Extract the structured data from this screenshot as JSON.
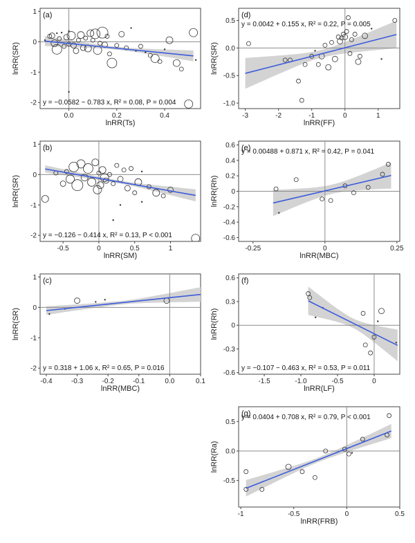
{
  "figure": {
    "description": ""
  },
  "style": {
    "band_color": "#d3d3d3",
    "line_color": "#3b5bdb",
    "point_color": "#333333",
    "ref_line_color": "#8c8c8c"
  },
  "chart_data": [
    {
      "id": "a",
      "panel_label": "(a)",
      "type": "scatter",
      "xlabel": "lnRR(Ts)",
      "ylabel": "lnRR(SR)",
      "xlim": [
        -0.12,
        0.55
      ],
      "ylim": [
        -2.2,
        1.1
      ],
      "xticks": [
        0.0,
        0.2,
        0.4
      ],
      "xtick_labels": [
        "0.0",
        "0.2",
        "0.4"
      ],
      "yticks": [
        -2,
        -1,
        0,
        1
      ],
      "ytick_labels": [
        "-2",
        "-1",
        "0",
        "1"
      ],
      "equation": {
        "prefix": "y = −0.0582 − 0.783 x, ",
        "r2": "R² = 0.08",
        "sep": ", ",
        "p": "P = 0.004"
      },
      "intercept": -0.0582,
      "slope": -0.783,
      "fit_range": [
        -0.1,
        0.52
      ],
      "band": [
        0.16,
        0.05,
        0.18
      ],
      "points": [
        [
          -0.1,
          0.05,
          2
        ],
        [
          -0.08,
          0.18,
          3
        ],
        [
          -0.07,
          0.2,
          4
        ],
        [
          -0.06,
          -0.05,
          5
        ],
        [
          -0.05,
          0.28,
          2
        ],
        [
          -0.05,
          -0.25,
          7
        ],
        [
          -0.04,
          0.1,
          3
        ],
        [
          -0.03,
          0.3,
          2
        ],
        [
          -0.02,
          -0.15,
          3
        ],
        [
          -0.01,
          0.15,
          4
        ],
        [
          0.0,
          0.35,
          2
        ],
        [
          0.0,
          -0.08,
          3
        ],
        [
          0.0,
          -1.65,
          2
        ],
        [
          0.01,
          0.2,
          6
        ],
        [
          0.02,
          -0.12,
          4
        ],
        [
          0.03,
          -0.3,
          4
        ],
        [
          0.04,
          0.05,
          3
        ],
        [
          0.05,
          0.22,
          5
        ],
        [
          0.06,
          -0.2,
          4
        ],
        [
          0.07,
          0.12,
          3
        ],
        [
          0.08,
          -0.22,
          5
        ],
        [
          0.09,
          0.28,
          5
        ],
        [
          0.1,
          0.05,
          3
        ],
        [
          0.11,
          0.26,
          7
        ],
        [
          0.12,
          -0.28,
          6
        ],
        [
          0.13,
          -0.05,
          3
        ],
        [
          0.14,
          0.3,
          8
        ],
        [
          0.15,
          -0.1,
          4
        ],
        [
          0.16,
          0.18,
          3
        ],
        [
          0.17,
          -0.4,
          3
        ],
        [
          0.18,
          -0.7,
          7
        ],
        [
          0.2,
          -0.12,
          3
        ],
        [
          0.22,
          0.25,
          4
        ],
        [
          0.24,
          -0.2,
          3
        ],
        [
          0.26,
          0.45,
          2
        ],
        [
          0.28,
          -0.3,
          2
        ],
        [
          0.3,
          -0.15,
          3
        ],
        [
          0.32,
          -0.35,
          2
        ],
        [
          0.34,
          -0.45,
          3
        ],
        [
          0.36,
          -0.55,
          6
        ],
        [
          0.38,
          -0.65,
          3
        ],
        [
          0.4,
          -0.25,
          2
        ],
        [
          0.42,
          0.05,
          5
        ],
        [
          0.45,
          -0.7,
          5
        ],
        [
          0.47,
          -0.9,
          3
        ],
        [
          0.5,
          -2.05,
          6
        ],
        [
          0.52,
          0.3,
          6
        ],
        [
          0.53,
          -0.6,
          2
        ]
      ]
    },
    {
      "id": "b",
      "panel_label": "(b)",
      "type": "scatter",
      "xlabel": "lnRR(SM)",
      "ylabel": "lnRR(SR)",
      "xlim": [
        -0.82,
        1.42
      ],
      "ylim": [
        -2.2,
        1.1
      ],
      "xticks": [
        -0.5,
        0.0,
        0.5,
        1.0
      ],
      "xtick_labels": [
        "-0.5",
        "0",
        "0.5",
        "1"
      ],
      "yticks": [
        -2,
        -1,
        0,
        1
      ],
      "ytick_labels": [
        "-2",
        "-1",
        "0",
        "1"
      ],
      "equation": {
        "prefix": "y = −0.126 − 0.414 x, ",
        "r2": "R² = 0.13",
        "sep": ", ",
        "p": "P < 0.001"
      },
      "intercept": -0.126,
      "slope": -0.414,
      "fit_range": [
        -0.75,
        1.35
      ],
      "band": [
        0.12,
        0.05,
        0.2
      ],
      "points": [
        [
          -0.75,
          -0.8,
          5
        ],
        [
          -0.6,
          0.05,
          3
        ],
        [
          -0.5,
          -0.3,
          4
        ],
        [
          -0.45,
          0.1,
          3
        ],
        [
          -0.4,
          -0.15,
          6
        ],
        [
          -0.35,
          0.25,
          7
        ],
        [
          -0.3,
          -0.35,
          8
        ],
        [
          -0.25,
          0.35,
          6
        ],
        [
          -0.2,
          -0.1,
          5
        ],
        [
          -0.15,
          0.2,
          7
        ],
        [
          -0.1,
          -0.25,
          6
        ],
        [
          -0.05,
          0.4,
          5
        ],
        [
          -0.02,
          -0.5,
          6
        ],
        [
          0.0,
          0.05,
          3
        ],
        [
          0.02,
          -0.35,
          5
        ],
        [
          0.05,
          0.15,
          5
        ],
        [
          0.08,
          -0.1,
          6
        ],
        [
          0.1,
          -0.2,
          4
        ],
        [
          0.15,
          0.0,
          3
        ],
        [
          0.2,
          -0.3,
          3
        ],
        [
          0.25,
          0.3,
          3
        ],
        [
          0.3,
          -0.15,
          4
        ],
        [
          0.35,
          0.15,
          3
        ],
        [
          0.4,
          -0.45,
          4
        ],
        [
          0.45,
          0.2,
          3
        ],
        [
          0.5,
          -0.6,
          3
        ],
        [
          0.55,
          -0.25,
          5
        ],
        [
          0.6,
          0.1,
          2
        ],
        [
          0.7,
          -0.4,
          3
        ],
        [
          0.8,
          -0.6,
          5
        ],
        [
          0.9,
          -0.7,
          3
        ],
        [
          1.0,
          -0.5,
          4
        ],
        [
          0.2,
          -1.5,
          2
        ],
        [
          0.3,
          -1.0,
          2
        ],
        [
          0.6,
          -0.9,
          2
        ],
        [
          1.35,
          -2.1,
          6
        ]
      ]
    },
    {
      "id": "c",
      "panel_label": "(c)",
      "type": "scatter",
      "xlabel": "lnRR(MBC)",
      "ylabel": "lnRR(SR)",
      "xlim": [
        -0.42,
        0.1
      ],
      "ylim": [
        -2.2,
        1.1
      ],
      "xticks": [
        -0.4,
        -0.3,
        -0.2,
        -0.1,
        0.0,
        0.1
      ],
      "xtick_labels": [
        "-0.4",
        "-0.3",
        "-0.2",
        "-0.1",
        "0.0",
        "0.1"
      ],
      "yticks": [
        -2,
        -1,
        0,
        1
      ],
      "ytick_labels": [
        "-2",
        "-1",
        "0",
        "1"
      ],
      "equation": {
        "prefix": "y = 0.318 + 1.06 x, ",
        "r2": "R² = 0.65",
        "sep": ", ",
        "p": "P = 0.016"
      },
      "intercept": 0.318,
      "slope": 1.06,
      "fit_range": [
        -0.4,
        0.1
      ],
      "band": [
        0.14,
        0.06,
        0.24
      ],
      "points": [
        [
          -0.39,
          -0.22,
          2
        ],
        [
          -0.34,
          -0.05,
          2
        ],
        [
          -0.3,
          0.22,
          4
        ],
        [
          -0.24,
          0.18,
          2
        ],
        [
          -0.21,
          0.25,
          2
        ],
        [
          -0.01,
          0.22,
          4
        ]
      ]
    },
    {
      "id": "d",
      "panel_label": "(d)",
      "type": "scatter",
      "xlabel": "lnRR(FF)",
      "ylabel": "lnRR(SR)",
      "xlim": [
        -3.2,
        1.65
      ],
      "ylim": [
        -1.1,
        0.72
      ],
      "xticks": [
        -3,
        -2,
        -1,
        0,
        1
      ],
      "xtick_labels": [
        "-3",
        "-2",
        "-1",
        "0",
        "1"
      ],
      "yticks": [
        -1.0,
        -0.5,
        0.0,
        0.5
      ],
      "ytick_labels": [
        "-1.0",
        "-0.5",
        "0.0",
        "0.5"
      ],
      "equation": {
        "prefix": "y = 0.0042 + 0.155 x, ",
        "r2": "R² = 0.22",
        "sep": ", ",
        "p": "P = 0.005"
      },
      "intercept": 0.0042,
      "slope": 0.155,
      "fit_range": [
        -3.0,
        1.55
      ],
      "band": [
        0.28,
        0.07,
        0.25
      ],
      "points": [
        [
          -2.9,
          0.08,
          3
        ],
        [
          -1.8,
          -0.22,
          3
        ],
        [
          -1.65,
          -0.22,
          3
        ],
        [
          -1.4,
          -0.6,
          3
        ],
        [
          -1.3,
          -0.95,
          3
        ],
        [
          -1.2,
          -0.3,
          3
        ],
        [
          -1.0,
          -0.15,
          3
        ],
        [
          -0.9,
          -0.05,
          2
        ],
        [
          -0.8,
          -0.3,
          3
        ],
        [
          -0.7,
          -0.15,
          4
        ],
        [
          -0.6,
          0.05,
          3
        ],
        [
          -0.5,
          -0.35,
          4
        ],
        [
          -0.4,
          0.1,
          3
        ],
        [
          -0.3,
          -0.2,
          4
        ],
        [
          -0.2,
          0.2,
          3
        ],
        [
          -0.15,
          0.12,
          4
        ],
        [
          -0.1,
          0.18,
          3
        ],
        [
          -0.05,
          0.25,
          3
        ],
        [
          0.0,
          0.2,
          4
        ],
        [
          0.05,
          0.3,
          3
        ],
        [
          0.1,
          0.55,
          3
        ],
        [
          0.15,
          -0.1,
          3
        ],
        [
          0.2,
          0.15,
          3
        ],
        [
          0.3,
          0.25,
          3
        ],
        [
          0.4,
          -0.25,
          4
        ],
        [
          0.45,
          -0.15,
          3
        ],
        [
          0.6,
          0.22,
          4
        ],
        [
          0.8,
          0.35,
          2
        ],
        [
          1.1,
          -0.2,
          2
        ],
        [
          1.5,
          0.5,
          3
        ]
      ]
    },
    {
      "id": "e",
      "panel_label": "(e)",
      "type": "scatter",
      "xlabel": "lnRR(MBC)",
      "ylabel": "lnRR(Rh)",
      "xlim": [
        -0.3,
        0.26
      ],
      "ylim": [
        -0.65,
        0.65
      ],
      "xticks": [
        -0.25,
        0.0,
        0.25
      ],
      "xtick_labels": [
        "-0.25",
        "0",
        "0.25"
      ],
      "yticks": [
        -0.6,
        -0.4,
        -0.2,
        0.0,
        0.2,
        0.4,
        0.6
      ],
      "ytick_labels": [
        "-0.6",
        "-0.4",
        "-0.2",
        "0",
        "0.2",
        "0.4",
        "0.6"
      ],
      "equation": {
        "prefix": "y = 0.00488 + 0.871 x, ",
        "r2": "R² = 0.42",
        "sep": ", ",
        "p": "P = 0.041"
      },
      "intercept": 0.00488,
      "slope": 0.871,
      "fit_range": [
        -0.18,
        0.23
      ],
      "band": [
        0.17,
        0.06,
        0.17
      ],
      "points": [
        [
          -0.17,
          0.03,
          3
        ],
        [
          -0.16,
          -0.28,
          2
        ],
        [
          -0.1,
          0.15,
          3
        ],
        [
          -0.01,
          -0.1,
          3
        ],
        [
          0.02,
          -0.12,
          3
        ],
        [
          0.07,
          0.07,
          3
        ],
        [
          0.1,
          -0.02,
          3
        ],
        [
          0.15,
          0.05,
          3
        ],
        [
          0.2,
          0.22,
          3
        ],
        [
          0.22,
          0.35,
          3
        ]
      ]
    },
    {
      "id": "f",
      "panel_label": "(f)",
      "type": "scatter",
      "xlabel": "lnRR(LF)",
      "ylabel": "lnRR(Rh)",
      "xlim": [
        -1.85,
        0.35
      ],
      "ylim": [
        -0.62,
        0.65
      ],
      "xticks": [
        -1.5,
        -1.0,
        -0.5,
        0.0
      ],
      "xtick_labels": [
        "-1.5",
        "-1.0",
        "-0.5",
        "0"
      ],
      "yticks": [
        -0.6,
        -0.3,
        0.0,
        0.3,
        0.6
      ],
      "ytick_labels": [
        "-0.6",
        "-0.3",
        "0",
        "0.3",
        "0.6"
      ],
      "equation": {
        "prefix": "y = −0.107 − 0.463 x, ",
        "r2": "R² = 0.53",
        "sep": ", ",
        "p": "P = 0.011"
      },
      "intercept": -0.107,
      "slope": -0.463,
      "fit_range": [
        -0.9,
        0.32
      ],
      "band": [
        0.18,
        0.06,
        0.2
      ],
      "points": [
        [
          -0.9,
          0.4,
          3
        ],
        [
          -0.88,
          0.35,
          3
        ],
        [
          -0.8,
          0.1,
          2
        ],
        [
          -0.7,
          0.22,
          2
        ],
        [
          -0.15,
          0.15,
          3
        ],
        [
          -0.12,
          -0.25,
          3
        ],
        [
          -0.05,
          -0.35,
          3
        ],
        [
          0.0,
          -0.15,
          3
        ],
        [
          0.05,
          0.05,
          2
        ],
        [
          0.1,
          0.18,
          4
        ],
        [
          0.3,
          -0.22,
          2
        ]
      ]
    },
    {
      "id": "g",
      "panel_label": "(g)",
      "type": "scatter",
      "xlabel": "lnRR(FRB)",
      "ylabel": "lnRR(Ra)",
      "xlim": [
        -1.02,
        0.5
      ],
      "ylim": [
        -0.95,
        0.75
      ],
      "xticks": [
        -1.0,
        -0.5,
        0.0,
        0.5
      ],
      "xtick_labels": [
        "-1",
        "-0.5",
        "0",
        "0.5"
      ],
      "yticks": [
        -0.5,
        0.0,
        0.5
      ],
      "ytick_labels": [
        "-0.5",
        "0.0",
        "0.5"
      ],
      "equation": {
        "prefix": "y = 0.0404 + 0.708 x, ",
        "r2": "R² = 0.79",
        "sep": ", ",
        "p": "P < 0.001"
      },
      "intercept": 0.0404,
      "slope": 0.708,
      "fit_range": [
        -0.95,
        0.42
      ],
      "band": [
        0.14,
        0.04,
        0.12
      ],
      "points": [
        [
          -0.95,
          -0.35,
          3
        ],
        [
          -0.95,
          -0.65,
          3
        ],
        [
          -0.8,
          -0.65,
          3
        ],
        [
          -0.55,
          -0.27,
          4
        ],
        [
          -0.42,
          -0.35,
          3
        ],
        [
          -0.3,
          -0.45,
          3
        ],
        [
          -0.2,
          0.0,
          3
        ],
        [
          -0.02,
          0.03,
          3
        ],
        [
          0.02,
          -0.05,
          3
        ],
        [
          0.05,
          -0.03,
          2
        ],
        [
          0.15,
          0.2,
          3
        ],
        [
          0.38,
          0.27,
          3
        ],
        [
          0.4,
          0.6,
          3
        ]
      ]
    }
  ]
}
